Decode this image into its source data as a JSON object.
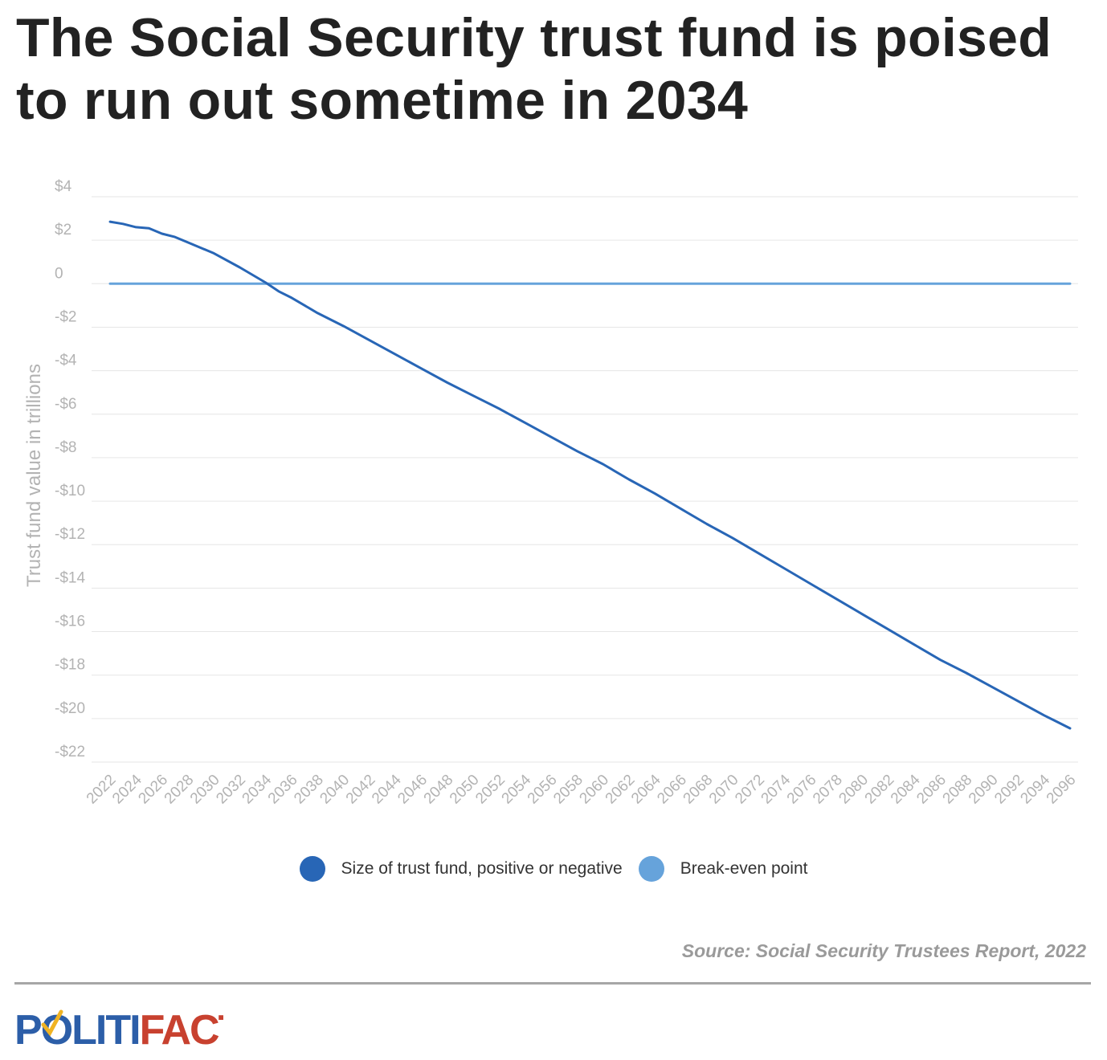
{
  "title": "The Social Security trust fund is poised to run out sometime in 2034",
  "source": "Source: Social Security Trustees Report, 2022",
  "logo": {
    "part1": "P",
    "part2": "LITI",
    "part3": "FACT"
  },
  "colors": {
    "fund_series": "#2866b6",
    "breakeven_series": "#66a3db",
    "gridline": "#e6e6e6",
    "tick_text": "#b3b3b3",
    "logo_blue": "#2c5ea8",
    "logo_red": "#c8412f",
    "logo_check": "#f0b323"
  },
  "chart_data": {
    "type": "line",
    "ylabel": "Trust fund value in trillions",
    "ylim": [
      -22,
      4
    ],
    "y_ticks": [
      4,
      2,
      0,
      -2,
      -4,
      -6,
      -8,
      -10,
      -12,
      -14,
      -16,
      -18,
      -20,
      -22
    ],
    "y_tick_labels": [
      "$4",
      "$2",
      "0",
      "-$2",
      "-$4",
      "-$6",
      "-$8",
      "-$10",
      "-$12",
      "-$14",
      "-$16",
      "-$18",
      "-$20",
      "-$22"
    ],
    "xlim": [
      2022,
      2096
    ],
    "x_tick_labels": [
      "2022",
      "2024",
      "2026",
      "2028",
      "2030",
      "2032",
      "2034",
      "2036",
      "2038",
      "2040",
      "2042",
      "2044",
      "2046",
      "2048",
      "2050",
      "2052",
      "2054",
      "2056",
      "2058",
      "2060",
      "2062",
      "2064",
      "2066",
      "2068",
      "2070",
      "2072",
      "2074",
      "2076",
      "2078",
      "2080",
      "2082",
      "2084",
      "2086",
      "2088",
      "2090",
      "2092",
      "2094",
      "2096"
    ],
    "grid": true,
    "legend_position": "bottom-center",
    "series": [
      {
        "name": "Size of trust fund, positive or negative",
        "color": "#2866b6",
        "x": [
          2022,
          2023,
          2024,
          2025,
          2026,
          2027,
          2028,
          2030,
          2032,
          2034,
          2035,
          2036,
          2038,
          2040,
          2042,
          2044,
          2046,
          2048,
          2050,
          2052,
          2054,
          2056,
          2058,
          2060,
          2062,
          2064,
          2066,
          2068,
          2070,
          2072,
          2074,
          2076,
          2078,
          2080,
          2082,
          2084,
          2086,
          2088,
          2090,
          2092,
          2094,
          2095,
          2096
        ],
        "values": [
          2.85,
          2.75,
          2.6,
          2.55,
          2.3,
          2.15,
          1.9,
          1.4,
          0.75,
          0.05,
          -0.35,
          -0.65,
          -1.35,
          -1.95,
          -2.6,
          -3.25,
          -3.9,
          -4.55,
          -5.15,
          -5.75,
          -6.4,
          -7.05,
          -7.7,
          -8.3,
          -9.0,
          -9.65,
          -10.35,
          -11.05,
          -11.7,
          -12.4,
          -13.1,
          -13.8,
          -14.5,
          -15.2,
          -15.9,
          -16.6,
          -17.3,
          -17.9,
          -18.55,
          -19.2,
          -19.85,
          -20.15,
          -20.45
        ]
      },
      {
        "name": "Break-even point",
        "color": "#66a3db",
        "x": [
          2022,
          2096
        ],
        "values": [
          0,
          0
        ]
      }
    ]
  }
}
